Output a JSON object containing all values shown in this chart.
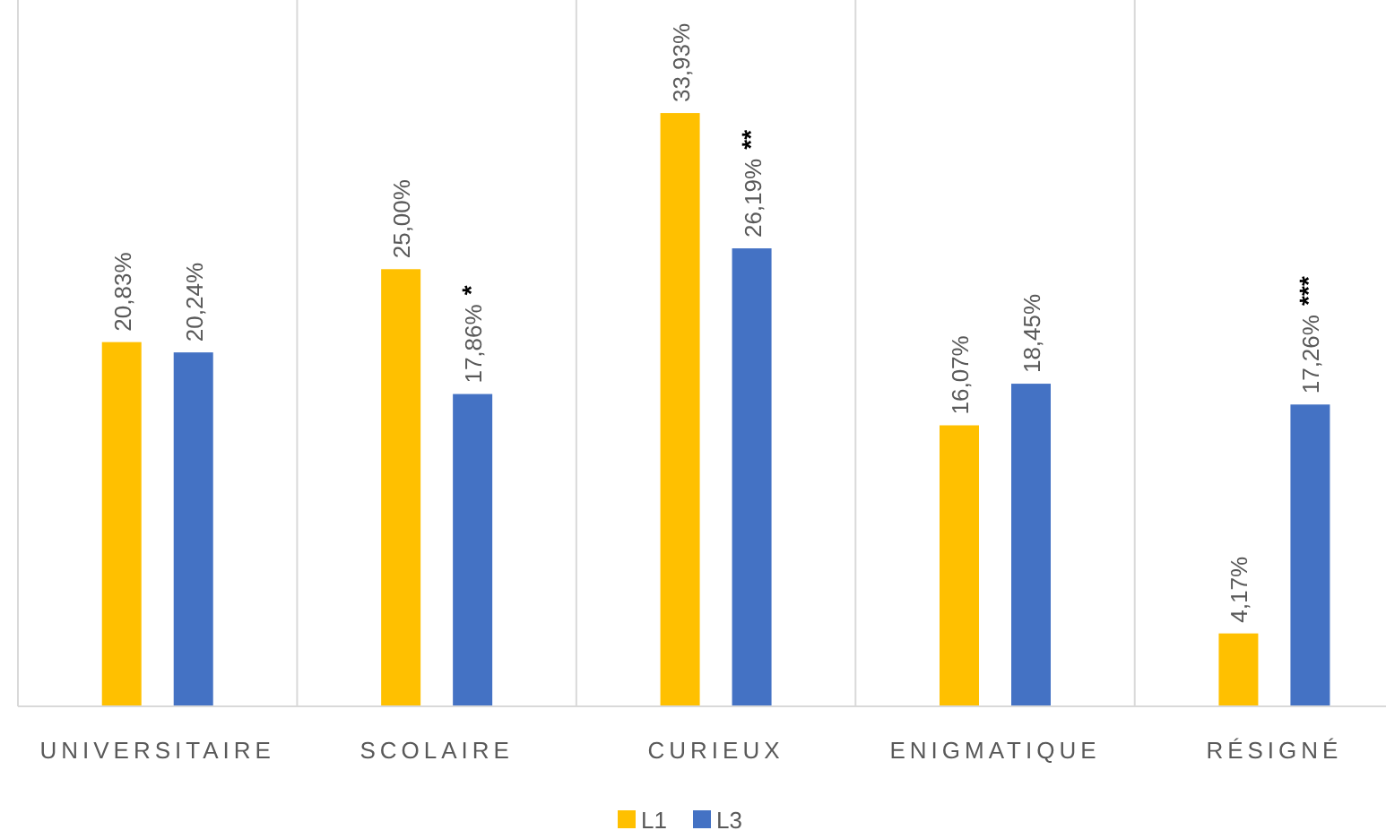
{
  "chart_data": {
    "type": "bar",
    "categories": [
      "UNIVERSITAIRE",
      "SCOLAIRE",
      "CURIEUX",
      "ENIGMATIQUE",
      "RÉSIGNÉ"
    ],
    "series": [
      {
        "name": "L1",
        "color": "#ffc000",
        "values": [
          20.83,
          25.0,
          33.93,
          16.07,
          4.17
        ],
        "value_labels": [
          "20,83%",
          "25,00%",
          "33,93%",
          "16,07%",
          "4,17%"
        ]
      },
      {
        "name": "L3",
        "color": "#4472c4",
        "values": [
          20.24,
          17.86,
          26.19,
          18.45,
          17.26
        ],
        "value_labels": [
          "20,24%",
          "17,86%",
          "26,19%",
          "18,45%",
          "17,26%"
        ]
      }
    ],
    "data_labels": true,
    "grid": "x",
    "legend": "bottom",
    "annotations": [
      "*",
      "**",
      "***"
    ]
  }
}
